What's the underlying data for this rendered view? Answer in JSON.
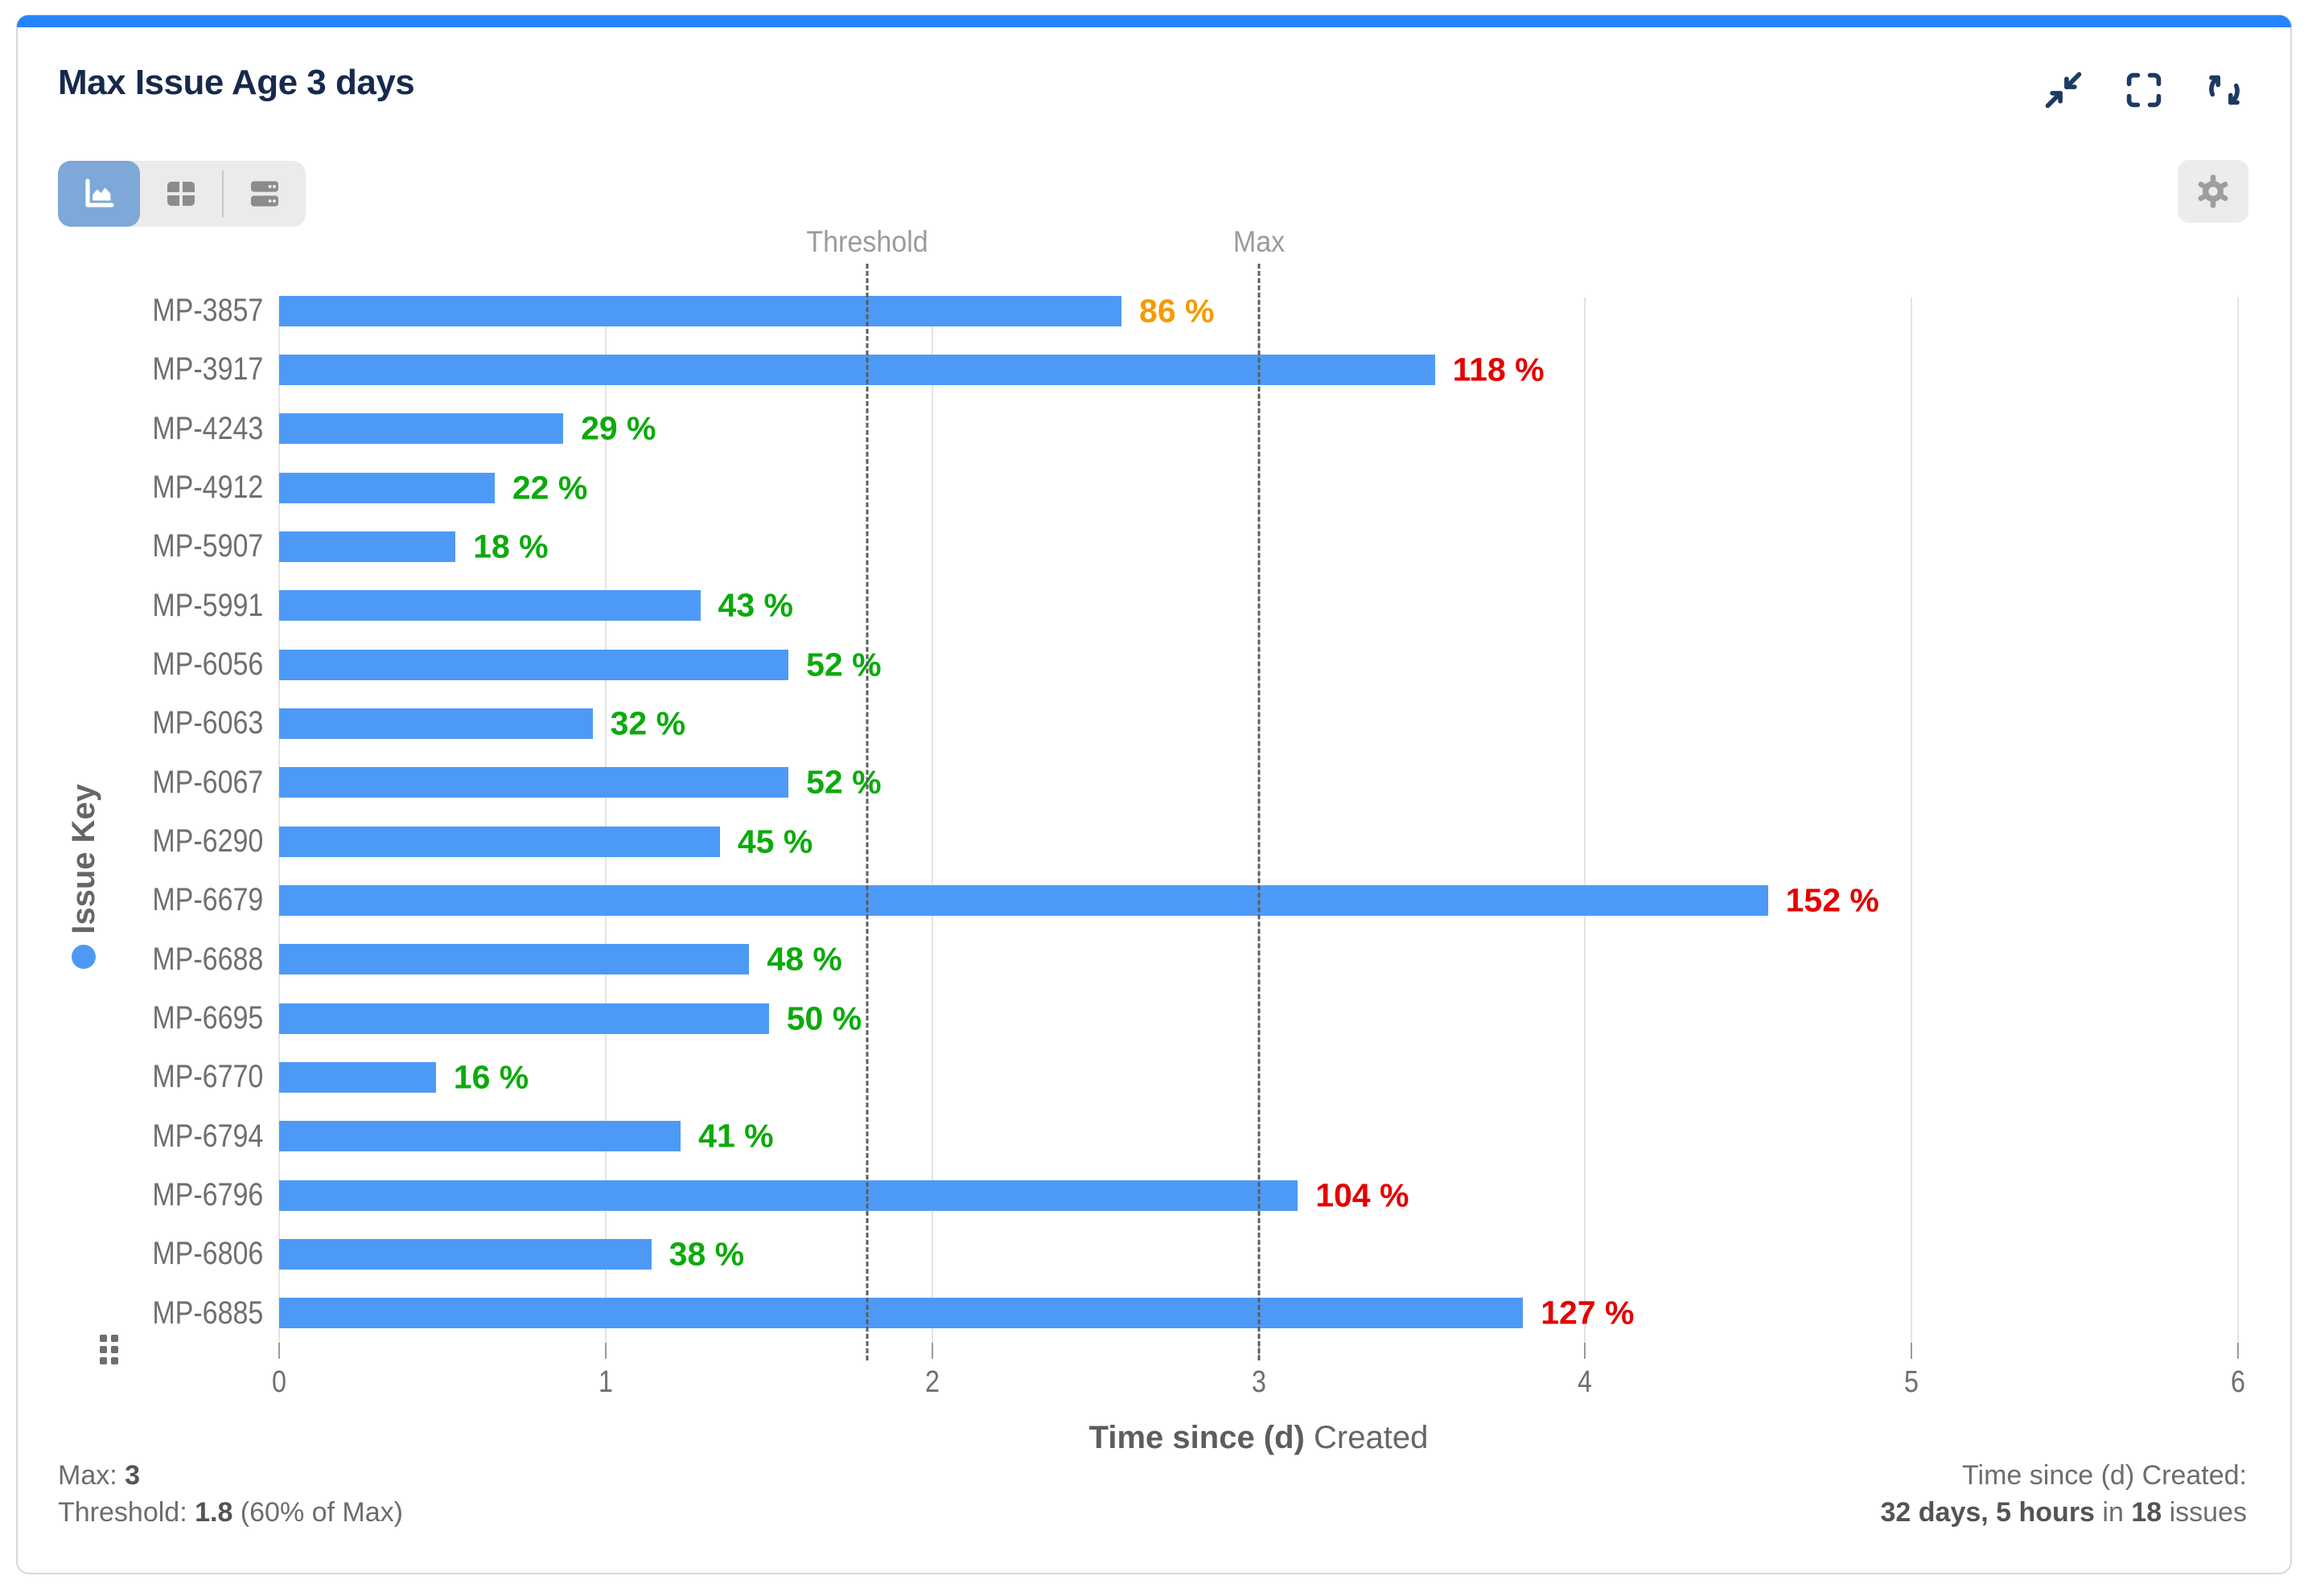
{
  "widget": {
    "title": "Max Issue Age 3 days",
    "accent_color": "#2684ff",
    "header_buttons": [
      {
        "name": "collapse",
        "icon": "collapse-arrows-icon"
      },
      {
        "name": "fullscreen",
        "icon": "fullscreen-icon"
      },
      {
        "name": "refresh",
        "icon": "refresh-icon"
      }
    ],
    "view_toggle": {
      "options": [
        "chart",
        "table",
        "list"
      ],
      "selected": "chart",
      "selected_bg": "#7ea8d8"
    },
    "settings_icon": "gear-icon"
  },
  "chart_data": {
    "type": "bar",
    "orientation": "horizontal",
    "ylabel": "Issue Key",
    "xlabel_bold": "Time since (d)",
    "xlabel_rest": "Created",
    "xlim": [
      0,
      6
    ],
    "xticks": [
      0,
      1,
      2,
      3,
      4,
      5,
      6
    ],
    "grid": true,
    "threshold": {
      "label": "Threshold",
      "value": 1.8
    },
    "max": {
      "label": "Max",
      "value": 3
    },
    "colors": {
      "bar": "#4d9af6",
      "under": "#0caa0c",
      "warn": "#f59b00",
      "over": "#e50000"
    },
    "items": [
      {
        "key": "MP-3857",
        "value": 2.58,
        "pct": 86,
        "pct_label": "86 %",
        "status": "warn"
      },
      {
        "key": "MP-3917",
        "value": 3.54,
        "pct": 118,
        "pct_label": "118 %",
        "status": "over"
      },
      {
        "key": "MP-4243",
        "value": 0.87,
        "pct": 29,
        "pct_label": "29 %",
        "status": "under"
      },
      {
        "key": "MP-4912",
        "value": 0.66,
        "pct": 22,
        "pct_label": "22 %",
        "status": "under"
      },
      {
        "key": "MP-5907",
        "value": 0.54,
        "pct": 18,
        "pct_label": "18 %",
        "status": "under"
      },
      {
        "key": "MP-5991",
        "value": 1.29,
        "pct": 43,
        "pct_label": "43 %",
        "status": "under"
      },
      {
        "key": "MP-6056",
        "value": 1.56,
        "pct": 52,
        "pct_label": "52 %",
        "status": "under"
      },
      {
        "key": "MP-6063",
        "value": 0.96,
        "pct": 32,
        "pct_label": "32 %",
        "status": "under"
      },
      {
        "key": "MP-6067",
        "value": 1.56,
        "pct": 52,
        "pct_label": "52 %",
        "status": "under"
      },
      {
        "key": "MP-6290",
        "value": 1.35,
        "pct": 45,
        "pct_label": "45 %",
        "status": "under"
      },
      {
        "key": "MP-6679",
        "value": 4.56,
        "pct": 152,
        "pct_label": "152 %",
        "status": "over"
      },
      {
        "key": "MP-6688",
        "value": 1.44,
        "pct": 48,
        "pct_label": "48 %",
        "status": "under"
      },
      {
        "key": "MP-6695",
        "value": 1.5,
        "pct": 50,
        "pct_label": "50 %",
        "status": "under"
      },
      {
        "key": "MP-6770",
        "value": 0.48,
        "pct": 16,
        "pct_label": "16 %",
        "status": "under"
      },
      {
        "key": "MP-6794",
        "value": 1.23,
        "pct": 41,
        "pct_label": "41 %",
        "status": "under"
      },
      {
        "key": "MP-6796",
        "value": 3.12,
        "pct": 104,
        "pct_label": "104 %",
        "status": "over"
      },
      {
        "key": "MP-6806",
        "value": 1.14,
        "pct": 38,
        "pct_label": "38 %",
        "status": "under"
      },
      {
        "key": "MP-6885",
        "value": 3.81,
        "pct": 127,
        "pct_label": "127 %",
        "status": "over"
      }
    ]
  },
  "footer": {
    "max_label": "Max: ",
    "max_value": "3",
    "threshold_label": "Threshold: ",
    "threshold_value": "1.8",
    "threshold_suffix": " (60% of Max)",
    "right_title": "Time since (d) Created:",
    "right_duration": "32 days, 5 hours",
    "right_mid": " in ",
    "right_count": "18",
    "right_suffix": " issues"
  }
}
